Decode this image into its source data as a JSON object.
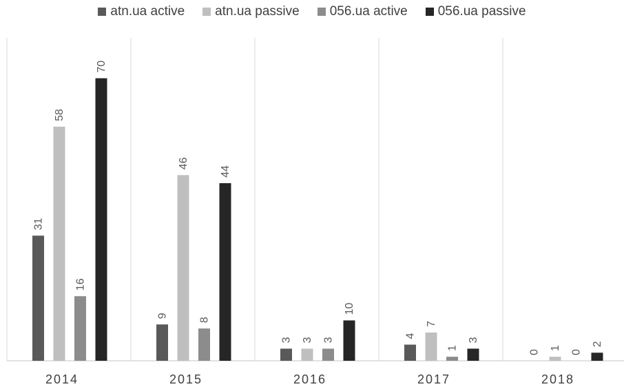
{
  "chart_data": {
    "type": "bar",
    "title": "",
    "xlabel": "",
    "ylabel": "",
    "categories": [
      "2014",
      "2015",
      "2016",
      "2017",
      "2018"
    ],
    "series": [
      {
        "name": "atn.ua active",
        "color": "#595959",
        "values": [
          31,
          9,
          3,
          4,
          0
        ]
      },
      {
        "name": "atn.ua passive",
        "color": "#bfbfbf",
        "values": [
          58,
          46,
          3,
          7,
          1
        ]
      },
      {
        "name": "056.ua active",
        "color": "#8c8c8c",
        "values": [
          16,
          8,
          3,
          1,
          0
        ]
      },
      {
        "name": "056.ua passive",
        "color": "#262626",
        "values": [
          70,
          44,
          10,
          3,
          2
        ]
      }
    ],
    "ylim": [
      0,
      80
    ],
    "y_axis_visible": false,
    "grid": "vertical category separators",
    "legend_position": "top",
    "data_labels": "rotated above bars"
  }
}
